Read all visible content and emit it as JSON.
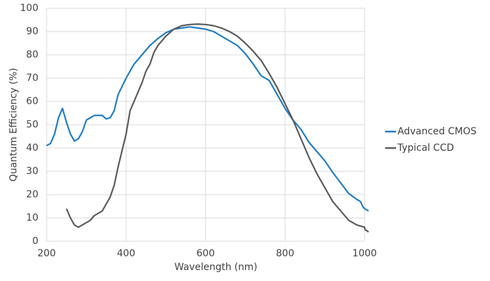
{
  "chart_data": {
    "type": "line",
    "xlabel": "Wavelength (nm)",
    "ylabel": "Quantum Efficiency (%)",
    "xlim": [
      200,
      1000
    ],
    "xticks": [
      200,
      400,
      600,
      800,
      1000
    ],
    "ylim": [
      0,
      100
    ],
    "yticks": [
      0,
      10,
      20,
      30,
      40,
      50,
      60,
      70,
      80,
      90,
      100
    ],
    "grid": true,
    "legend": "right",
    "series": [
      {
        "name": "Advanced CMOS",
        "color": "#1f7bc1",
        "x": [
          200,
          210,
          220,
          230,
          240,
          250,
          260,
          270,
          280,
          290,
          300,
          310,
          320,
          340,
          350,
          360,
          370,
          380,
          400,
          420,
          440,
          460,
          480,
          500,
          520,
          540,
          560,
          580,
          600,
          620,
          640,
          660,
          680,
          700,
          720,
          740,
          760,
          780,
          800,
          820,
          840,
          860,
          880,
          900,
          920,
          940,
          960,
          980,
          990,
          995,
          1000,
          1010
        ],
        "values": [
          41,
          42,
          46,
          53,
          57,
          51,
          46,
          43,
          44,
          47,
          52,
          53,
          54,
          54,
          52.5,
          53,
          56,
          63,
          70,
          76,
          80,
          84,
          87,
          89.5,
          91,
          91.5,
          92,
          91.5,
          91,
          90,
          88,
          86,
          84,
          80.5,
          76,
          71,
          69,
          63,
          57,
          52,
          48,
          42.5,
          38.5,
          34.5,
          29.5,
          25,
          20.5,
          18,
          17,
          15,
          14,
          13
        ]
      },
      {
        "name": "Typical CCD",
        "color": "#595959",
        "x": [
          250,
          260,
          270,
          280,
          290,
          300,
          310,
          320,
          340,
          360,
          370,
          380,
          400,
          410,
          420,
          440,
          450,
          460,
          470,
          480,
          500,
          520,
          540,
          560,
          580,
          600,
          620,
          640,
          660,
          680,
          700,
          720,
          740,
          760,
          780,
          800,
          820,
          840,
          860,
          880,
          900,
          920,
          940,
          960,
          980,
          1000,
          1001,
          1010
        ],
        "values": [
          14,
          10,
          7,
          6,
          7,
          8,
          9,
          11,
          13,
          19,
          24,
          32,
          46,
          56,
          60,
          68,
          73,
          76,
          81,
          84,
          88,
          91,
          92.5,
          93,
          93.2,
          93,
          92.5,
          91.5,
          90,
          88,
          85,
          81.5,
          77.5,
          72,
          66,
          59,
          52,
          44,
          36,
          29,
          23,
          17,
          13,
          9,
          7,
          6,
          5,
          4
        ]
      }
    ]
  }
}
